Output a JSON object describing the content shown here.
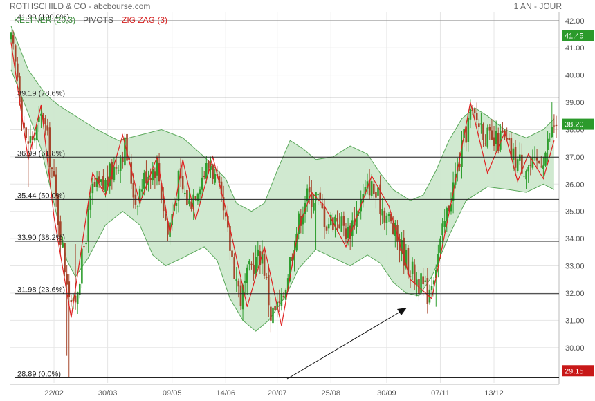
{
  "header": {
    "title": "ROTHSCHILD & CO - abcbourse.com",
    "overlay_keltner": "KELTNER (20,3)",
    "overlay_pivots": "PIVOTS",
    "overlay_zigzag": "ZIG ZAG (3)",
    "period": "1 AN - JOUR"
  },
  "colors": {
    "band_fill": "#cde8cd",
    "band_line": "#5aa85a",
    "up_candle": "#2e9e2e",
    "down_candle": "#a5452b",
    "zigzag": "#e02020",
    "fib_line": "#222222",
    "last_tag": "#2b9a2b",
    "low_tag": "#c81818",
    "current_tag": "#2b9a2b",
    "grid": "#e6e6e6",
    "header_title": "#666666",
    "header_keltner": "#3a8a3a",
    "header_pivots": "#555555",
    "header_zigzag": "#d42020"
  },
  "chart_data": {
    "type": "candlestick",
    "title": "ROTHSCHILD & CO - abcbourse.com",
    "ylim": [
      28.7,
      42.3
    ],
    "y_ticks": [
      "42.00",
      "41.00",
      "40.00",
      "39.00",
      "38.00",
      "37.00",
      "36.00",
      "35.00",
      "34.00",
      "33.00",
      "32.00",
      "31.00",
      "30.00"
    ],
    "y_tick_values": [
      42,
      41,
      40,
      39,
      38,
      37,
      36,
      35,
      34,
      33,
      32,
      31,
      30
    ],
    "x_ticks": [
      "22/02",
      "30/03",
      "09/05",
      "14/06",
      "20/07",
      "25/08",
      "30/09",
      "07/11",
      "13/12"
    ],
    "x_tick_sessions": [
      20,
      45,
      75,
      100,
      124,
      149,
      175,
      200,
      225
    ],
    "sessions": 255,
    "fib_levels": [
      {
        "value": 41.99,
        "label": "41.99 (100.0%)"
      },
      {
        "value": 39.19,
        "label": "39.19 (78.6%)"
      },
      {
        "value": 36.99,
        "label": "36.99 (61.8%)"
      },
      {
        "value": 35.44,
        "label": "35.44 (50.0%)"
      },
      {
        "value": 33.9,
        "label": "33.90 (38.2%)"
      },
      {
        "value": 31.98,
        "label": "31.98 (23.6%)"
      },
      {
        "value": 28.89,
        "label": "28.89 (0.0%)"
      }
    ],
    "price_tags": [
      {
        "value": 41.45,
        "label": "41.45"
      },
      {
        "value": 38.2,
        "label": "38.20"
      },
      {
        "value": 29.15,
        "label": "29.15"
      }
    ],
    "keltner_upper": [
      [
        0,
        41.8
      ],
      [
        8,
        40.2
      ],
      [
        16,
        39.3
      ],
      [
        22,
        38.9
      ],
      [
        30,
        38.5
      ],
      [
        40,
        38.0
      ],
      [
        50,
        37.6
      ],
      [
        60,
        37.8
      ],
      [
        70,
        38.0
      ],
      [
        80,
        37.7
      ],
      [
        90,
        37.0
      ],
      [
        100,
        36.2
      ],
      [
        105,
        35.3
      ],
      [
        112,
        35.0
      ],
      [
        118,
        35.3
      ],
      [
        124,
        36.5
      ],
      [
        130,
        37.6
      ],
      [
        136,
        37.3
      ],
      [
        142,
        36.9
      ],
      [
        150,
        37.0
      ],
      [
        158,
        37.4
      ],
      [
        166,
        37.1
      ],
      [
        172,
        36.4
      ],
      [
        178,
        35.8
      ],
      [
        186,
        35.4
      ],
      [
        192,
        35.6
      ],
      [
        198,
        36.5
      ],
      [
        204,
        37.6
      ],
      [
        210,
        38.4
      ],
      [
        216,
        38.8
      ],
      [
        222,
        38.5
      ],
      [
        230,
        38.0
      ],
      [
        240,
        37.7
      ],
      [
        248,
        38.0
      ],
      [
        253,
        38.4
      ]
    ],
    "keltner_lower": [
      [
        0,
        40.2
      ],
      [
        8,
        38.6
      ],
      [
        14,
        37.3
      ],
      [
        20,
        35.3
      ],
      [
        26,
        33.2
      ],
      [
        30,
        32.6
      ],
      [
        36,
        33.3
      ],
      [
        44,
        34.5
      ],
      [
        52,
        35.0
      ],
      [
        60,
        34.5
      ],
      [
        66,
        33.4
      ],
      [
        72,
        33.0
      ],
      [
        80,
        33.3
      ],
      [
        90,
        33.7
      ],
      [
        96,
        33.2
      ],
      [
        102,
        31.8
      ],
      [
        108,
        31.0
      ],
      [
        114,
        30.6
      ],
      [
        120,
        31.0
      ],
      [
        128,
        31.9
      ],
      [
        134,
        32.9
      ],
      [
        142,
        33.6
      ],
      [
        150,
        33.3
      ],
      [
        158,
        33.0
      ],
      [
        166,
        33.4
      ],
      [
        172,
        33.1
      ],
      [
        178,
        32.4
      ],
      [
        184,
        32.0
      ],
      [
        190,
        31.9
      ],
      [
        196,
        32.6
      ],
      [
        204,
        34.1
      ],
      [
        212,
        35.4
      ],
      [
        222,
        35.9
      ],
      [
        232,
        35.8
      ],
      [
        240,
        35.7
      ],
      [
        248,
        36.0
      ],
      [
        253,
        35.8
      ]
    ],
    "zigzag": [
      [
        0,
        41.2
      ],
      [
        8,
        36.9
      ],
      [
        14,
        38.9
      ],
      [
        20,
        34.8
      ],
      [
        28,
        31.1
      ],
      [
        38,
        36.4
      ],
      [
        44,
        35.6
      ],
      [
        52,
        37.8
      ],
      [
        60,
        35.3
      ],
      [
        68,
        37.0
      ],
      [
        74,
        34.2
      ],
      [
        80,
        36.9
      ],
      [
        86,
        34.7
      ],
      [
        94,
        37.0
      ],
      [
        100,
        35.1
      ],
      [
        110,
        31.5
      ],
      [
        118,
        33.7
      ],
      [
        126,
        30.8
      ],
      [
        134,
        34.4
      ],
      [
        140,
        35.7
      ],
      [
        146,
        35.2
      ],
      [
        156,
        33.7
      ],
      [
        168,
        36.3
      ],
      [
        176,
        35.2
      ],
      [
        186,
        32.5
      ],
      [
        196,
        31.8
      ],
      [
        206,
        35.7
      ],
      [
        214,
        39.0
      ],
      [
        222,
        36.4
      ],
      [
        230,
        37.9
      ],
      [
        236,
        36.1
      ],
      [
        241,
        37.1
      ],
      [
        248,
        36.2
      ],
      [
        253,
        37.6
      ]
    ],
    "candle_control": [
      [
        0,
        41.2
      ],
      [
        3,
        40.0
      ],
      [
        7,
        37.5
      ],
      [
        11,
        37.8
      ],
      [
        15,
        38.6
      ],
      [
        20,
        36.0
      ],
      [
        25,
        33.0
      ],
      [
        29,
        31.4
      ],
      [
        33,
        33.2
      ],
      [
        38,
        35.8
      ],
      [
        43,
        35.9
      ],
      [
        48,
        36.6
      ],
      [
        53,
        37.4
      ],
      [
        58,
        35.4
      ],
      [
        63,
        36.4
      ],
      [
        68,
        36.7
      ],
      [
        73,
        34.2
      ],
      [
        78,
        36.1
      ],
      [
        83,
        35.3
      ],
      [
        88,
        36.2
      ],
      [
        93,
        36.8
      ],
      [
        97,
        35.6
      ],
      [
        102,
        33.7
      ],
      [
        107,
        31.8
      ],
      [
        112,
        33.0
      ],
      [
        117,
        33.5
      ],
      [
        121,
        31.2
      ],
      [
        126,
        31.6
      ],
      [
        132,
        34.0
      ],
      [
        137,
        35.5
      ],
      [
        142,
        35.6
      ],
      [
        147,
        34.6
      ],
      [
        152,
        34.8
      ],
      [
        157,
        34.2
      ],
      [
        162,
        35.2
      ],
      [
        167,
        36.0
      ],
      [
        172,
        35.3
      ],
      [
        176,
        34.7
      ],
      [
        181,
        33.8
      ],
      [
        186,
        32.9
      ],
      [
        190,
        32.4
      ],
      [
        194,
        32.0
      ],
      [
        199,
        33.4
      ],
      [
        204,
        35.3
      ],
      [
        209,
        36.9
      ],
      [
        214,
        38.6
      ],
      [
        219,
        38.2
      ],
      [
        224,
        37.4
      ],
      [
        229,
        37.7
      ],
      [
        234,
        37.0
      ],
      [
        239,
        36.7
      ],
      [
        244,
        36.6
      ],
      [
        249,
        37.2
      ],
      [
        253,
        38.2
      ]
    ],
    "wick_spikes": [
      [
        8,
        35.9
      ],
      [
        14,
        38.9
      ],
      [
        26,
        29.7
      ],
      [
        27,
        28.9
      ],
      [
        30,
        33.8
      ],
      [
        108,
        31.9
      ],
      [
        122,
        31.0
      ],
      [
        142,
        33.6
      ],
      [
        192,
        31.9
      ],
      [
        194,
        31.7
      ],
      [
        198,
        31.5
      ],
      [
        214,
        38.9
      ],
      [
        252,
        39.0
      ]
    ]
  }
}
